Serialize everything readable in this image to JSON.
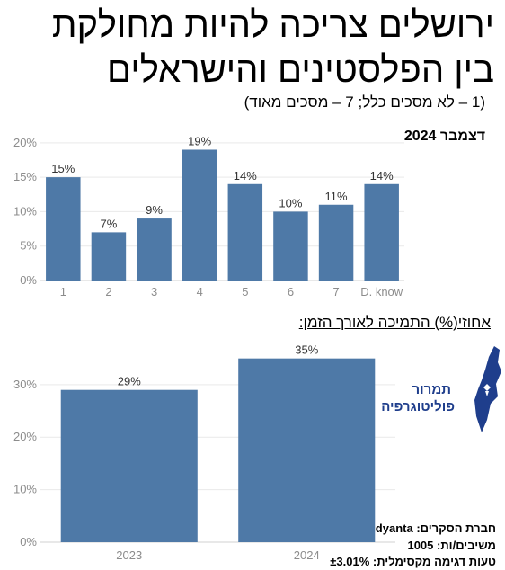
{
  "title_line1": "ירושלים צריכה להיות מחולקת",
  "title_line2": "בין הפלסטינים והישראלים",
  "subtitle": "(1 – לא מסכים כלל; 7 – מסכים מאוד)",
  "period_label": "דצמבר 2024",
  "trend_heading": "אחוזי(%) התמיכה לאורך הזמן:",
  "logo": {
    "line1": "תמרור",
    "line2": "פוליטוגרפיה"
  },
  "footer": {
    "company": "חברת הסקרים: dyanta",
    "respondents": "משיבים/ות: 1005",
    "margin": "טעות דגימה מקסימלית: ±3.01%"
  },
  "colors": {
    "bar": "#4e79a7",
    "grid": "#e9e9e9",
    "tick": "#8c8c8c",
    "logo": "#1f3e8c"
  },
  "chart_data": [
    {
      "type": "bar",
      "categories": [
        "1",
        "2",
        "3",
        "4",
        "5",
        "6",
        "7",
        "D. know"
      ],
      "values": [
        15,
        7,
        9,
        19,
        14,
        10,
        11,
        14
      ],
      "value_labels": [
        "15%",
        "7%",
        "9%",
        "19%",
        "14%",
        "10%",
        "11%",
        "14%"
      ],
      "yticks": [
        "0%",
        "5%",
        "10%",
        "15%",
        "20%"
      ],
      "ylim": [
        0,
        20.5
      ],
      "grid": true
    },
    {
      "type": "bar",
      "categories": [
        "2023",
        "2024"
      ],
      "values": [
        29,
        35
      ],
      "value_labels": [
        "29%",
        "35%"
      ],
      "yticks": [
        "0%",
        "10%",
        "20%",
        "30%"
      ],
      "ylim": [
        0,
        37
      ],
      "grid": true
    }
  ]
}
